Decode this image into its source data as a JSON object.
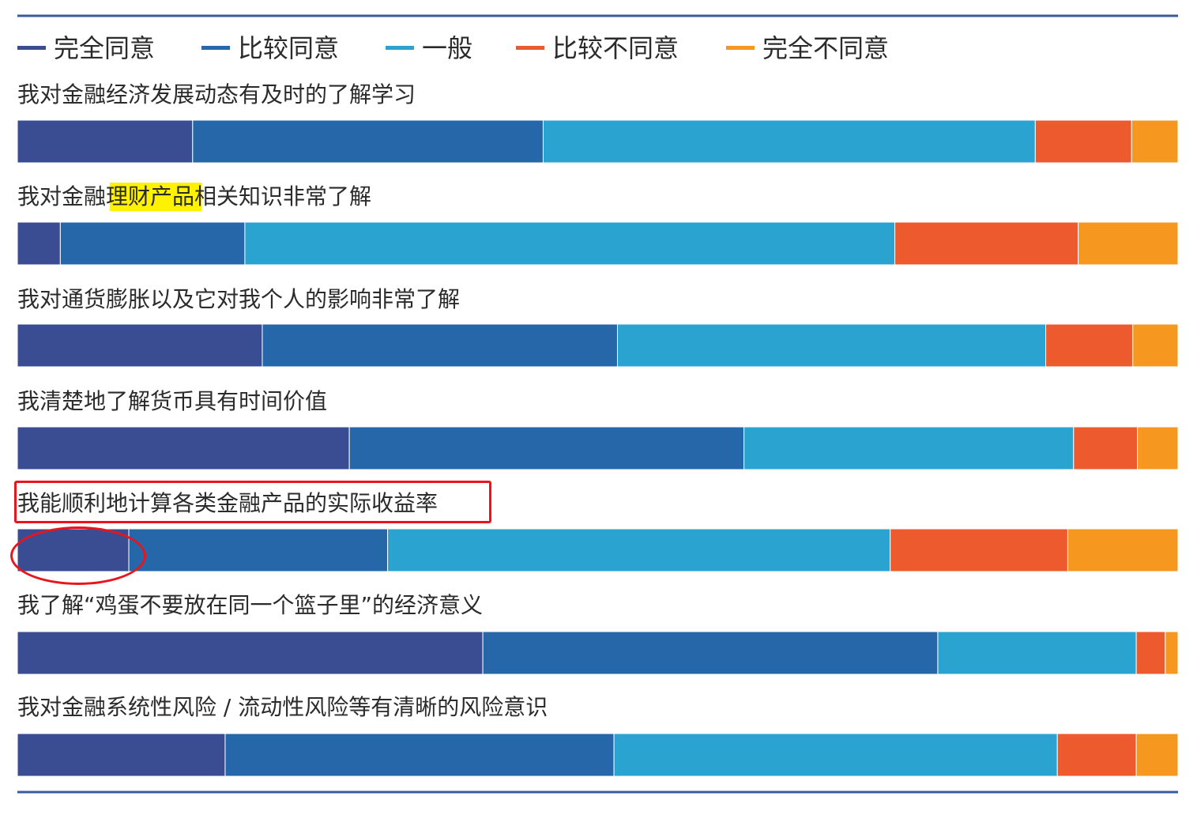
{
  "chart_data": {
    "type": "bar",
    "orientation": "horizontal",
    "stacked": true,
    "normalized": true,
    "legend": {
      "placement": "top-left",
      "items": [
        {
          "label": "完全同意",
          "color": "#3a4d93"
        },
        {
          "label": "比较同意",
          "color": "#2567a8"
        },
        {
          "label": "一般",
          "color": "#2aa3d0"
        },
        {
          "label": "比较不同意",
          "color": "#ec5a2e"
        },
        {
          "label": "完全不同意",
          "color": "#f6981f"
        }
      ]
    },
    "categories": [
      "我对金融经济发展动态有及时的了解学习",
      "我对金融理财产品相关知识非常了解",
      "我对通货膨胀以及它对我个人的影响非常了解",
      "我清楚地了解货币具有时间价值",
      "我能顺利地计算各类金融产品的实际收益率",
      "我了解“鸡蛋不要放在同一个篮子里”的经济意义",
      "我对金融系统性风险 / 流动性风险等有清晰的风险意识"
    ],
    "series": [
      {
        "name": "完全同意",
        "values": [
          15.1,
          3.7,
          21.1,
          28.6,
          9.6,
          40.1,
          17.9
        ]
      },
      {
        "name": "比较同意",
        "values": [
          30.2,
          15.9,
          30.6,
          34.0,
          22.3,
          39.2,
          33.5
        ]
      },
      {
        "name": "一般",
        "values": [
          42.4,
          56.0,
          36.9,
          28.4,
          43.3,
          17.1,
          38.2
        ]
      },
      {
        "name": "比较不同意",
        "values": [
          8.3,
          15.8,
          7.5,
          5.5,
          15.3,
          2.5,
          6.8
        ]
      },
      {
        "name": "完全不同意",
        "values": [
          4.0,
          8.6,
          3.9,
          3.5,
          9.5,
          1.1,
          3.6
        ]
      }
    ],
    "xlim": [
      0,
      100
    ],
    "grid": false
  },
  "highlights": {
    "marker_color": "#fff200",
    "highlighted_text": "理财产品",
    "annotation_color": "#e8151c"
  }
}
